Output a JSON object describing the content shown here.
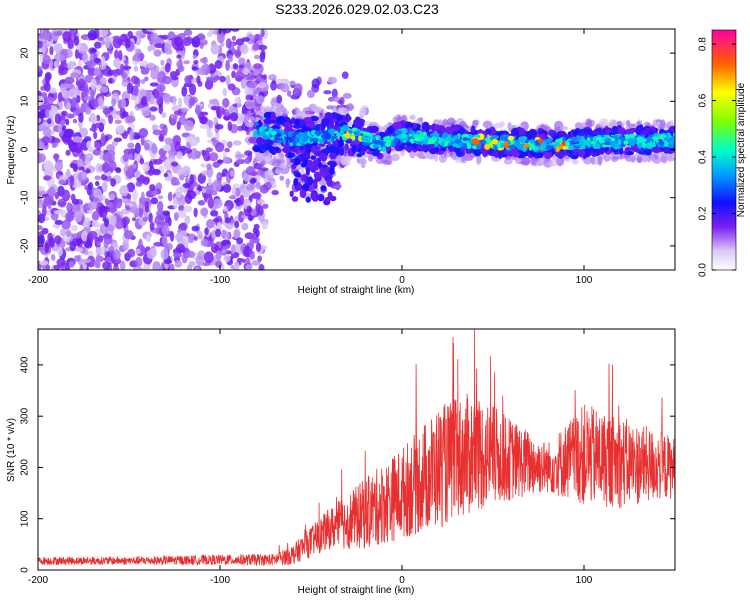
{
  "title": "S233.2026.029.02.03.C23",
  "chart_data": [
    {
      "type": "heatmap",
      "title": "S233.2026.029.02.03.C23",
      "xlabel": "Height of straight line (km)",
      "ylabel": "Frequency (Hz)",
      "xlim": [
        -200,
        150
      ],
      "ylim": [
        -25,
        25
      ],
      "xticks": [
        -200,
        -100,
        0,
        100
      ],
      "yticks": [
        -20,
        -10,
        0,
        10,
        20
      ],
      "colorbar": {
        "label": "Normalized spectral amplitude",
        "range": [
          0,
          0.85
        ],
        "ticks": [
          "0.0",
          "0.2",
          "0.4",
          "0.6",
          "0.8"
        ]
      },
      "description_points": {
        "noise_region_x": [
          -200,
          -75
        ],
        "signal_band_start_x": -80,
        "signal_band_center_hz": [
          [
            -80,
            4
          ],
          [
            -60,
            2
          ],
          [
            -40,
            3
          ],
          [
            -30,
            3.5
          ],
          [
            -10,
            1
          ],
          [
            0,
            3
          ],
          [
            20,
            2
          ],
          [
            50,
            1.5
          ],
          [
            80,
            1
          ],
          [
            100,
            1.5
          ],
          [
            150,
            2
          ]
        ]
      }
    },
    {
      "type": "line",
      "xlabel": "Height of straight line (km)",
      "ylabel": "SNR (10 * v/v)",
      "xlim": [
        -200,
        150
      ],
      "ylim": [
        0,
        470
      ],
      "xticks": [
        -200,
        -100,
        0,
        100
      ],
      "yticks": [
        0,
        100,
        200,
        300,
        400
      ],
      "color": "#e83030",
      "envelope": {
        "x": [
          -200,
          -150,
          -100,
          -70,
          -60,
          -40,
          -20,
          0,
          20,
          40,
          60,
          80,
          100,
          120,
          150
        ],
        "mean": [
          18,
          18,
          20,
          20,
          30,
          80,
          110,
          150,
          200,
          230,
          215,
          200,
          225,
          210,
          200
        ],
        "amp": [
          8,
          8,
          10,
          12,
          20,
          40,
          70,
          90,
          120,
          120,
          80,
          50,
          100,
          90,
          60
        ]
      }
    }
  ]
}
